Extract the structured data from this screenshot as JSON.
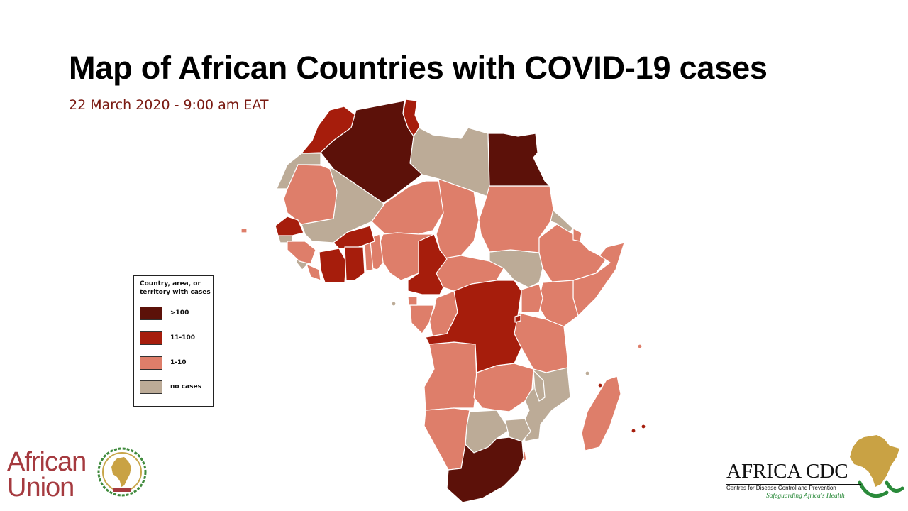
{
  "slide": {
    "title": "Map of African Countries with COVID-19 cases",
    "subtitle": "22 March 2020 - 9:00 am EAT"
  },
  "legend": {
    "title": "Country, area, or territory with cases",
    "items": [
      {
        "label": ">100",
        "color": "#5c1109"
      },
      {
        "label": "11-100",
        "color": "#a61d0c"
      },
      {
        "label": "1-10",
        "color": "#de7e6a"
      },
      {
        "label": "no cases",
        "color": "#bcab97"
      }
    ]
  },
  "colors": {
    "over_100": "#5c1109",
    "c11_100": "#a61d0c",
    "c1_10": "#de7e6a",
    "no_cases": "#bcab97",
    "title_text": "#000000",
    "subtitle_text": "#7a1a12"
  },
  "logos": {
    "african_union": {
      "line1": "African",
      "line2": "Union"
    },
    "africa_cdc": {
      "name": "AFRICA CDC",
      "tagline": "Centres for Disease Control and Prevention",
      "motto": "Safeguarding Africa's Health"
    }
  }
}
